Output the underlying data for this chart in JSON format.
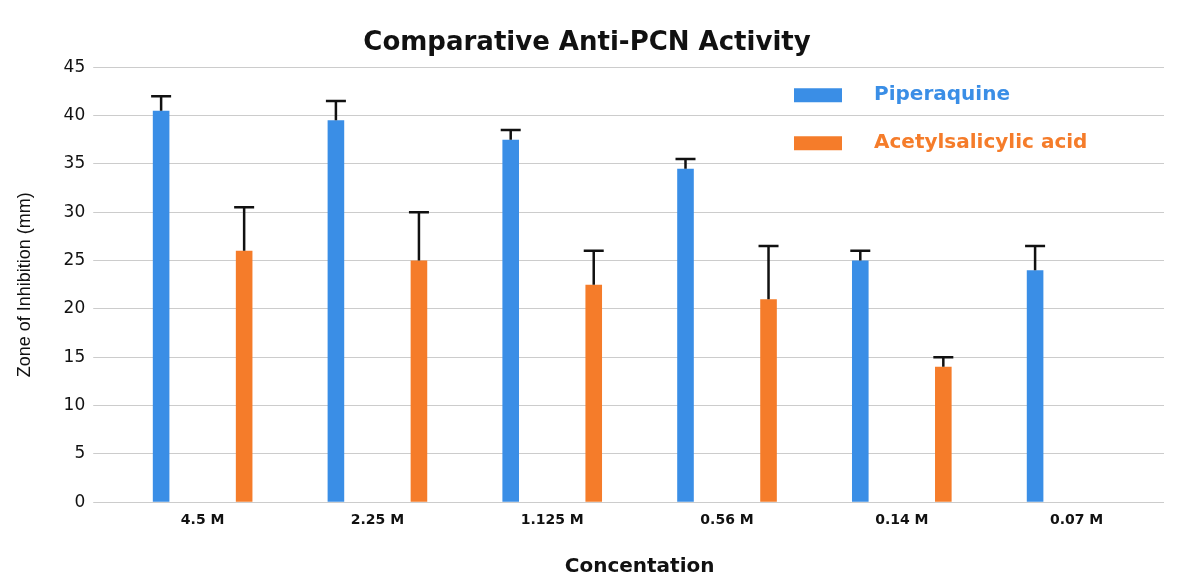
{
  "chart_data": {
    "type": "bar",
    "title": "Comparative Anti-PCN Activity",
    "xlabel": "Concentation",
    "ylabel": "Zone of Inhibition (mm)",
    "categories": [
      "4.5 M",
      "2.25 M",
      "1.125 M",
      "0.56 M",
      "0.14 M",
      "0.07 M"
    ],
    "series": [
      {
        "name": "Piperaquine",
        "color": "#3a8ee6",
        "values": [
          40.5,
          39.5,
          37.5,
          34.5,
          25,
          24
        ],
        "errors": [
          [
            40.5,
            42
          ],
          [
            39.5,
            41.5
          ],
          [
            37.5,
            38.5
          ],
          [
            34.5,
            35.5
          ],
          [
            25,
            26
          ],
          [
            24,
            26.5
          ]
        ]
      },
      {
        "name": "Acetylsalicylic acid",
        "color": "#f57c2a",
        "values": [
          26,
          25,
          22.5,
          21,
          14,
          null
        ],
        "errors": [
          [
            26,
            30.5
          ],
          [
            25,
            30
          ],
          [
            22.5,
            26
          ],
          [
            21,
            26.5
          ],
          [
            14,
            15
          ],
          null
        ]
      }
    ],
    "ylim": [
      0,
      45
    ],
    "yticks": [
      0,
      5,
      10,
      15,
      20,
      25,
      30,
      35,
      40,
      45
    ],
    "grid": "y",
    "legend": "top right"
  }
}
